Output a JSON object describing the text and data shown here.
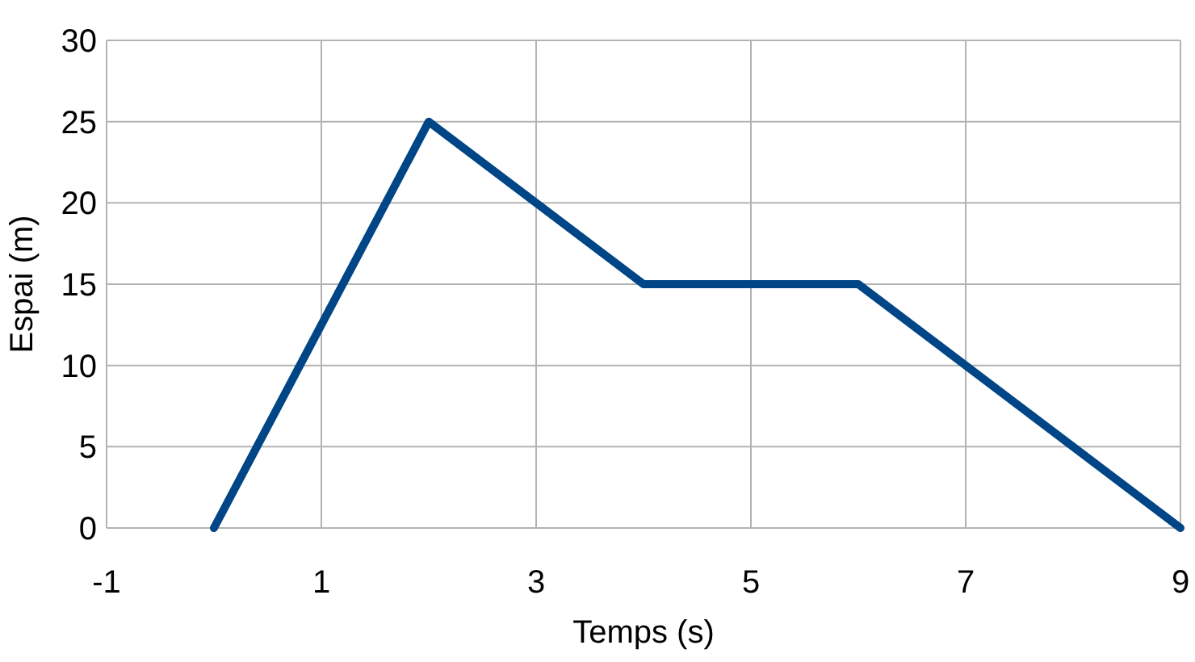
{
  "chart_data": {
    "type": "line",
    "xlabel": "Temps (s)",
    "ylabel": "Espai (m)",
    "x": [
      0,
      2,
      4,
      6,
      9
    ],
    "series": [
      {
        "color": "#004586",
        "values": [
          0,
          25,
          15,
          15,
          0
        ]
      }
    ],
    "xlim": [
      -1,
      9
    ],
    "xticks": [
      -1,
      1,
      3,
      5,
      7,
      9
    ],
    "ylim": [
      0,
      30
    ],
    "yticks": [
      0,
      5,
      10,
      15,
      20,
      25,
      30
    ],
    "grid": true,
    "marker": "none",
    "line_style": "solid"
  }
}
